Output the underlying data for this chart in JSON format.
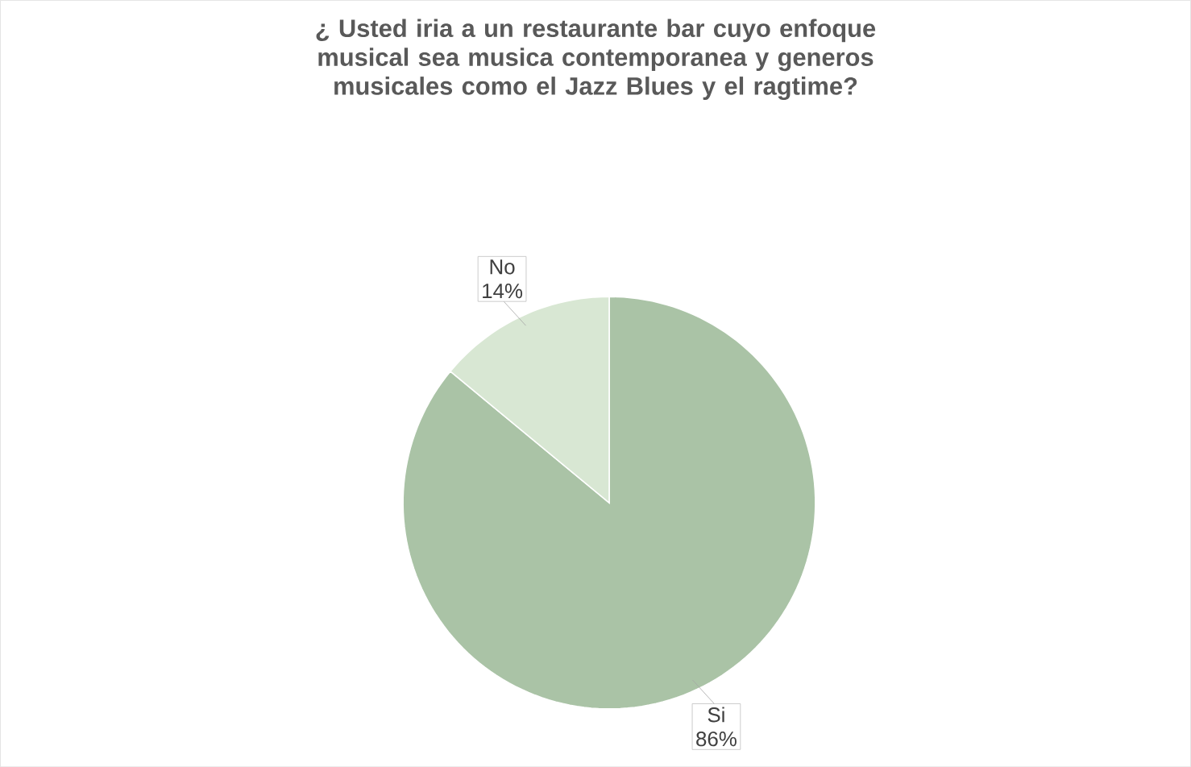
{
  "chart_data": {
    "type": "pie",
    "title": "¿ Usted iria a un restaurante bar cuyo enfoque musical  sea musica contemporanea y generos musicales como el Jazz Blues y el ragtime?",
    "categories": [
      "Si",
      "No"
    ],
    "values": [
      86,
      14
    ],
    "value_labels": [
      "86%",
      "14%"
    ],
    "colors": [
      "#aac3a6",
      "#d8e7d3"
    ]
  }
}
